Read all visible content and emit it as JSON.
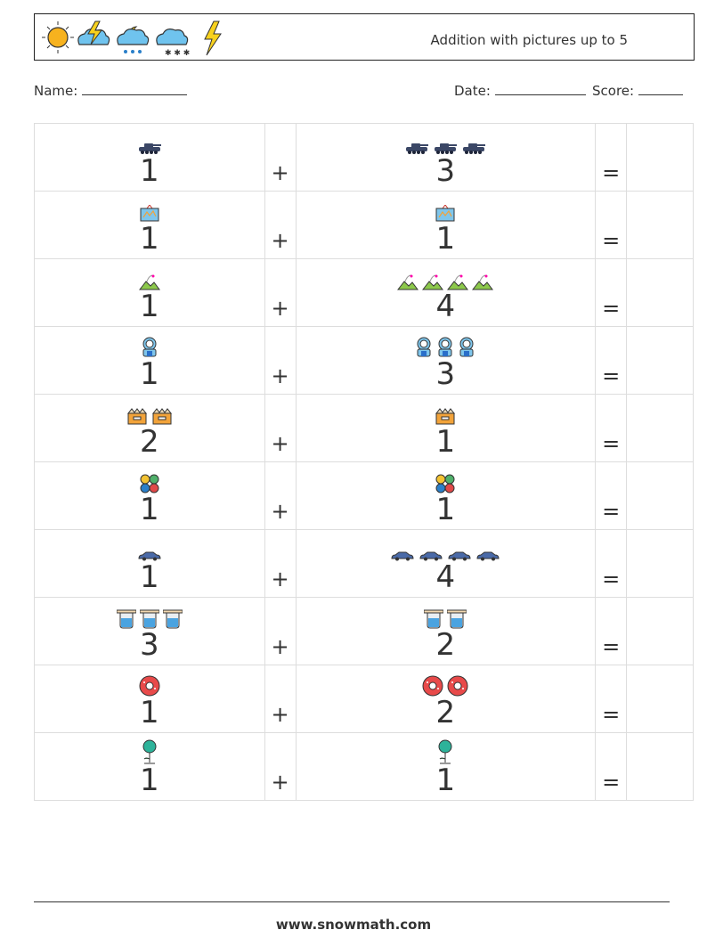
{
  "title": "Addition with pictures up to 5",
  "header_icons": [
    "sun-icon",
    "thunder-cloud-icon",
    "rain-cloud-moon-icon",
    "snow-cloud-icon",
    "lightning-icon"
  ],
  "labels": {
    "name": "Name:",
    "date": "Date:",
    "score": "Score:"
  },
  "operators": {
    "plus": "+",
    "equals": "="
  },
  "problems": [
    {
      "icon": "tank-icon",
      "a": 1,
      "b": 3
    },
    {
      "icon": "map-board-icon",
      "a": 1,
      "b": 1
    },
    {
      "icon": "hill-road-icon",
      "a": 1,
      "b": 4
    },
    {
      "icon": "astronaut-icon",
      "a": 1,
      "b": 3
    },
    {
      "icon": "box-icon",
      "a": 2,
      "b": 1
    },
    {
      "icon": "clover-dots-icon",
      "a": 1,
      "b": 1
    },
    {
      "icon": "car-icon",
      "a": 1,
      "b": 4
    },
    {
      "icon": "beaker-icon",
      "a": 3,
      "b": 2
    },
    {
      "icon": "donut-icon",
      "a": 1,
      "b": 2
    },
    {
      "icon": "balloon-plant-icon",
      "a": 1,
      "b": 1
    }
  ],
  "footer": "www.snowmath.com"
}
